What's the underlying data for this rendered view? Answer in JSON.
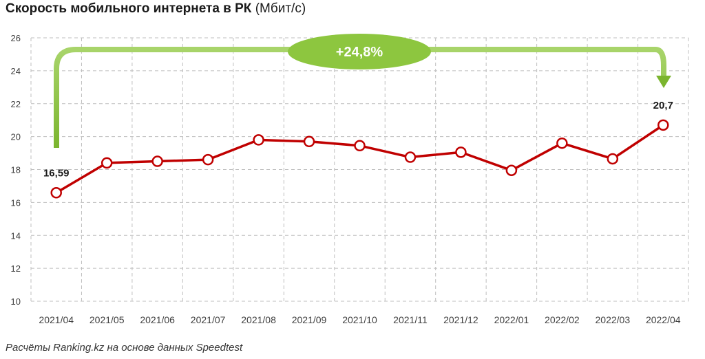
{
  "title_bold": "Скорость мобильного интернета в РК",
  "title_unit": "(Мбит/с)",
  "source": "Расчёты Ranking.kz на основе данных Speedtest",
  "growth_label": "+24,8%",
  "colors": {
    "line": "#c00000",
    "arrow": "#8dc63f",
    "grid": "#bfbfbf",
    "text": "#1a1a1a"
  },
  "chart_data": {
    "type": "line",
    "categories": [
      "2021/04",
      "2021/05",
      "2021/06",
      "2021/07",
      "2021/08",
      "2021/09",
      "2021/10",
      "2021/11",
      "2021/12",
      "2022/01",
      "2022/02",
      "2022/03",
      "2022/04"
    ],
    "series": [
      {
        "values": [
          16.59,
          18.4,
          18.5,
          18.6,
          19.8,
          19.7,
          19.45,
          18.75,
          19.05,
          17.95,
          19.6,
          18.65,
          20.7
        ]
      }
    ],
    "data_labels": [
      {
        "index": 0,
        "text": "16,59"
      },
      {
        "index": 12,
        "text": "20,7"
      }
    ],
    "ylim": [
      10,
      26
    ],
    "yticks": [
      10,
      12,
      14,
      16,
      18,
      20,
      22,
      24,
      26
    ],
    "grid": true,
    "xlabel": "",
    "ylabel": ""
  }
}
